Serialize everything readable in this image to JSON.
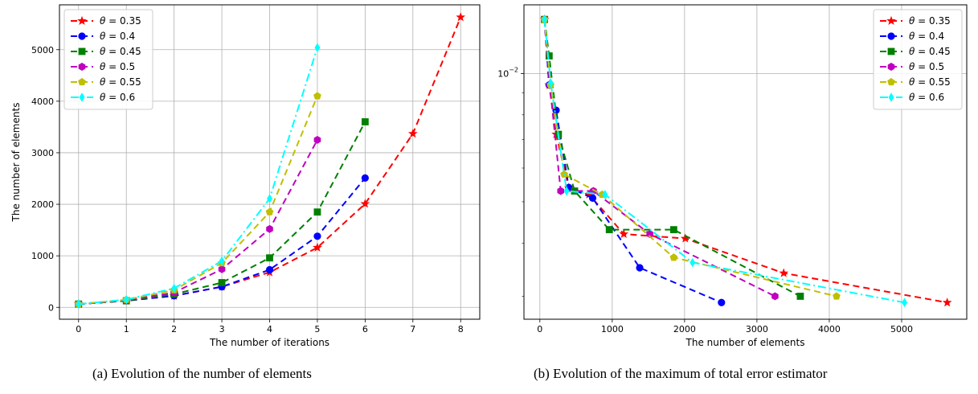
{
  "captions": {
    "a": "(a) Evolution of the number of elements",
    "b": "(b) Evolution of the maximum of total error estimator"
  },
  "chart_data": [
    {
      "type": "line",
      "xlabel": "The number of iterations",
      "ylabel": "The number of elements",
      "xlim": [
        -0.4,
        8.4
      ],
      "ylim": [
        -230,
        5870
      ],
      "xticks": [
        0,
        1,
        2,
        3,
        4,
        5,
        6,
        7,
        8
      ],
      "yticks": [
        0,
        1000,
        2000,
        3000,
        4000,
        5000
      ],
      "grid": true,
      "legend": "top-left",
      "series": [
        {
          "name": "θ = 0.35",
          "color": "#ff0000",
          "marker": "star",
          "dash": "8,5",
          "x": [
            0,
            1,
            2,
            3,
            4,
            5,
            6,
            7,
            8
          ],
          "y": [
            64,
            128,
            224,
            400,
            680,
            1160,
            2010,
            3370,
            5630
          ]
        },
        {
          "name": "θ = 0.4",
          "color": "#0000ff",
          "marker": "circle",
          "dash": "8,5",
          "x": [
            0,
            1,
            2,
            3,
            4,
            5,
            6
          ],
          "y": [
            64,
            128,
            224,
            400,
            730,
            1380,
            2510
          ]
        },
        {
          "name": "θ = 0.45",
          "color": "#008000",
          "marker": "square",
          "dash": "8,5",
          "x": [
            0,
            1,
            2,
            3,
            4,
            5,
            6
          ],
          "y": [
            64,
            128,
            256,
            480,
            960,
            1850,
            3600
          ]
        },
        {
          "name": "θ = 0.5",
          "color": "#c000c0",
          "marker": "hexagon",
          "dash": "8,5",
          "x": [
            0,
            1,
            2,
            3,
            4,
            5
          ],
          "y": [
            64,
            138,
            288,
            740,
            1520,
            3250
          ]
        },
        {
          "name": "θ = 0.55",
          "color": "#bfbf00",
          "marker": "pentagon",
          "dash": "8,5",
          "x": [
            0,
            1,
            2,
            3,
            4,
            5
          ],
          "y": [
            64,
            148,
            336,
            860,
            1850,
            4100
          ]
        },
        {
          "name": "θ = 0.6",
          "color": "#00ffff",
          "marker": "diamond",
          "dash": "10,4,2,4",
          "x": [
            0,
            1,
            2,
            3,
            4,
            5
          ],
          "y": [
            64,
            150,
            370,
            900,
            2110,
            5040
          ]
        }
      ]
    },
    {
      "type": "line",
      "xlabel": "The number of elements",
      "ylabel": "",
      "yscale": "log",
      "xlim": [
        -220,
        5900
      ],
      "ylim": [
        0.00265,
        0.0145
      ],
      "xticks": [
        0,
        1000,
        2000,
        3000,
        4000,
        5000
      ],
      "yticks": [
        0.01
      ],
      "ytick_labels": [
        "10^-2"
      ],
      "grid": true,
      "legend": "top-right",
      "series": [
        {
          "name": "θ = 0.35",
          "color": "#ff0000",
          "marker": "star",
          "dash": "8,5",
          "x": [
            64,
            128,
            224,
            400,
            680,
            1160,
            2010,
            3370,
            5630
          ],
          "y": [
            0.0134,
            0.0094,
            0.0072,
            0.0054,
            0.0052,
            0.0042,
            0.0041,
            0.0034,
            0.0029
          ]
        },
        {
          "name": "θ = 0.4",
          "color": "#0000ff",
          "marker": "circle",
          "dash": "8,5",
          "x": [
            64,
            128,
            224,
            400,
            730,
            1380,
            2510
          ],
          "y": [
            0.0134,
            0.0094,
            0.0082,
            0.0054,
            0.0051,
            0.0035,
            0.0029
          ]
        },
        {
          "name": "θ = 0.45",
          "color": "#008000",
          "marker": "square",
          "dash": "8,5",
          "x": [
            64,
            128,
            256,
            480,
            960,
            1850,
            3600
          ],
          "y": [
            0.0134,
            0.011,
            0.0072,
            0.0053,
            0.0043,
            0.0043,
            0.003
          ]
        },
        {
          "name": "θ = 0.5",
          "color": "#c000c0",
          "marker": "hexagon",
          "dash": "8,5",
          "x": [
            64,
            138,
            288,
            740,
            1520,
            3250
          ],
          "y": [
            0.0134,
            0.0094,
            0.0053,
            0.0053,
            0.0042,
            0.003
          ]
        },
        {
          "name": "θ = 0.55",
          "color": "#bfbf00",
          "marker": "pentagon",
          "dash": "8,5",
          "x": [
            64,
            148,
            336,
            860,
            1850,
            4100
          ],
          "y": [
            0.0134,
            0.0094,
            0.0058,
            0.0052,
            0.0037,
            0.003
          ]
        },
        {
          "name": "θ = 0.6",
          "color": "#00ffff",
          "marker": "diamond",
          "dash": "10,4,2,4",
          "x": [
            64,
            150,
            370,
            900,
            2110,
            5040
          ],
          "y": [
            0.0134,
            0.0095,
            0.0053,
            0.0052,
            0.0036,
            0.0029
          ]
        }
      ]
    }
  ]
}
